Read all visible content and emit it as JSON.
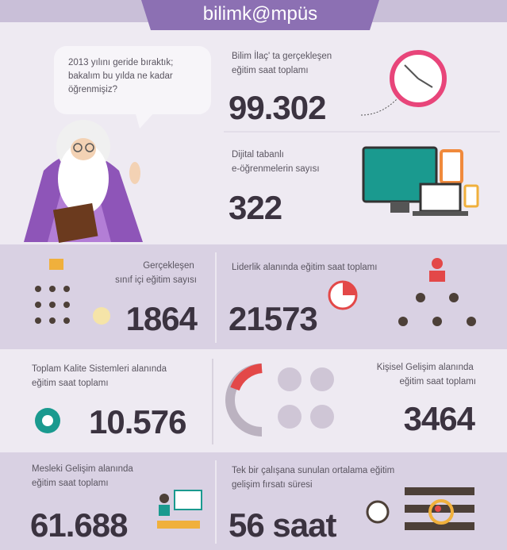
{
  "header": {
    "title": "bilimk@mpüs"
  },
  "intro": {
    "lines": [
      "2013 yılını geride bıraktık;",
      "bakalım bu yılda ne kadar",
      "öğrenmişiz?"
    ]
  },
  "stats": [
    {
      "label": [
        "Bilim İlaç' ta gerçekleşen",
        "eğitim saat toplamı"
      ],
      "value": "99.302"
    },
    {
      "label": [
        "Dijital tabanlı",
        "e-öğrenmelerin sayısı"
      ],
      "value": "322"
    },
    {
      "label": [
        "Gerçekleşen",
        "sınıf içi eğitim sayısı"
      ],
      "value": "1864"
    },
    {
      "label": [
        "Liderlik alanında eğitim saat toplamı"
      ],
      "value": "21573"
    },
    {
      "label": [
        "Toplam Kalite Sistemleri alanında",
        "eğitim saat toplamı"
      ],
      "value": "10.576"
    },
    {
      "label": [
        "Kişisel Gelişim alanında",
        "eğitim saat toplamı"
      ],
      "value": "3464"
    },
    {
      "label": [
        "Mesleki Gelişim alanında",
        "eğitim saat toplamı"
      ],
      "value": "61.688"
    },
    {
      "label": [
        "Tek bir çalışana sunulan ortalama eğitim",
        "gelişim fırsatı süresi"
      ],
      "value": "56 saat"
    }
  ]
}
